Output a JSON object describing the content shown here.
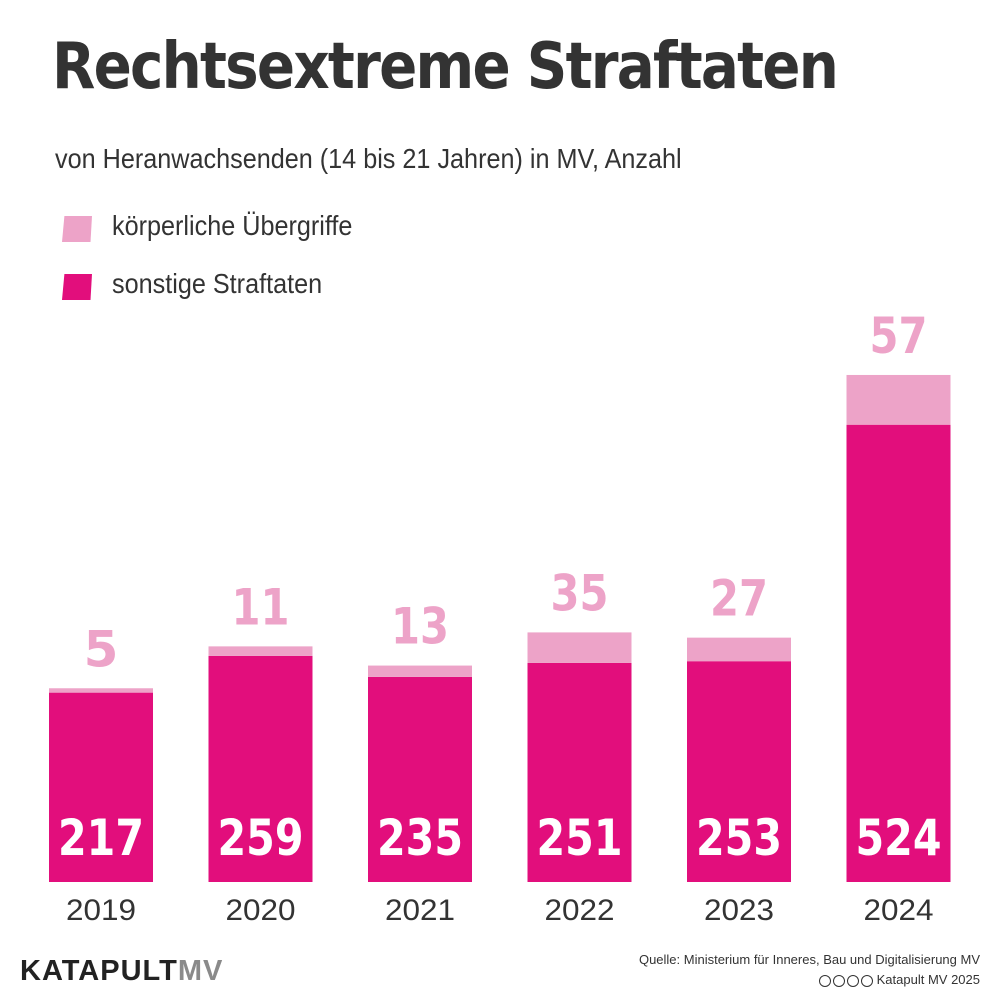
{
  "title": "Rechtsextreme Straftaten",
  "subtitle": "von Heranwachsenden (14 bis 21 Jahren) in MV, Anzahl",
  "legend": [
    {
      "label": "körperliche Übergriffe",
      "color": "#eda3c8"
    },
    {
      "label": "sonstige Straftaten",
      "color": "#e20e7c"
    }
  ],
  "chart_data": {
    "type": "bar",
    "stacked": true,
    "categories": [
      "2019",
      "2020",
      "2021",
      "2022",
      "2023",
      "2024"
    ],
    "series": [
      {
        "name": "sonstige Straftaten",
        "color": "#e20e7c",
        "values": [
          217,
          259,
          235,
          251,
          253,
          524
        ]
      },
      {
        "name": "körperliche Übergriffe",
        "color": "#eda3c8",
        "values": [
          5,
          11,
          13,
          35,
          27,
          57
        ]
      }
    ],
    "title": "Rechtsextreme Straftaten",
    "subtitle": "von Heranwachsenden (14 bis 21 Jahren) in MV, Anzahl",
    "ylim": [
      0,
      600
    ],
    "grid": false,
    "legend_position": "top-left"
  },
  "footer": {
    "logo_main": "KATAPULT",
    "logo_suffix": "MV",
    "source": "Quelle: Ministerium für Inneres, Bau und Digitalisierung MV",
    "copyright": "Katapult MV 2025"
  }
}
